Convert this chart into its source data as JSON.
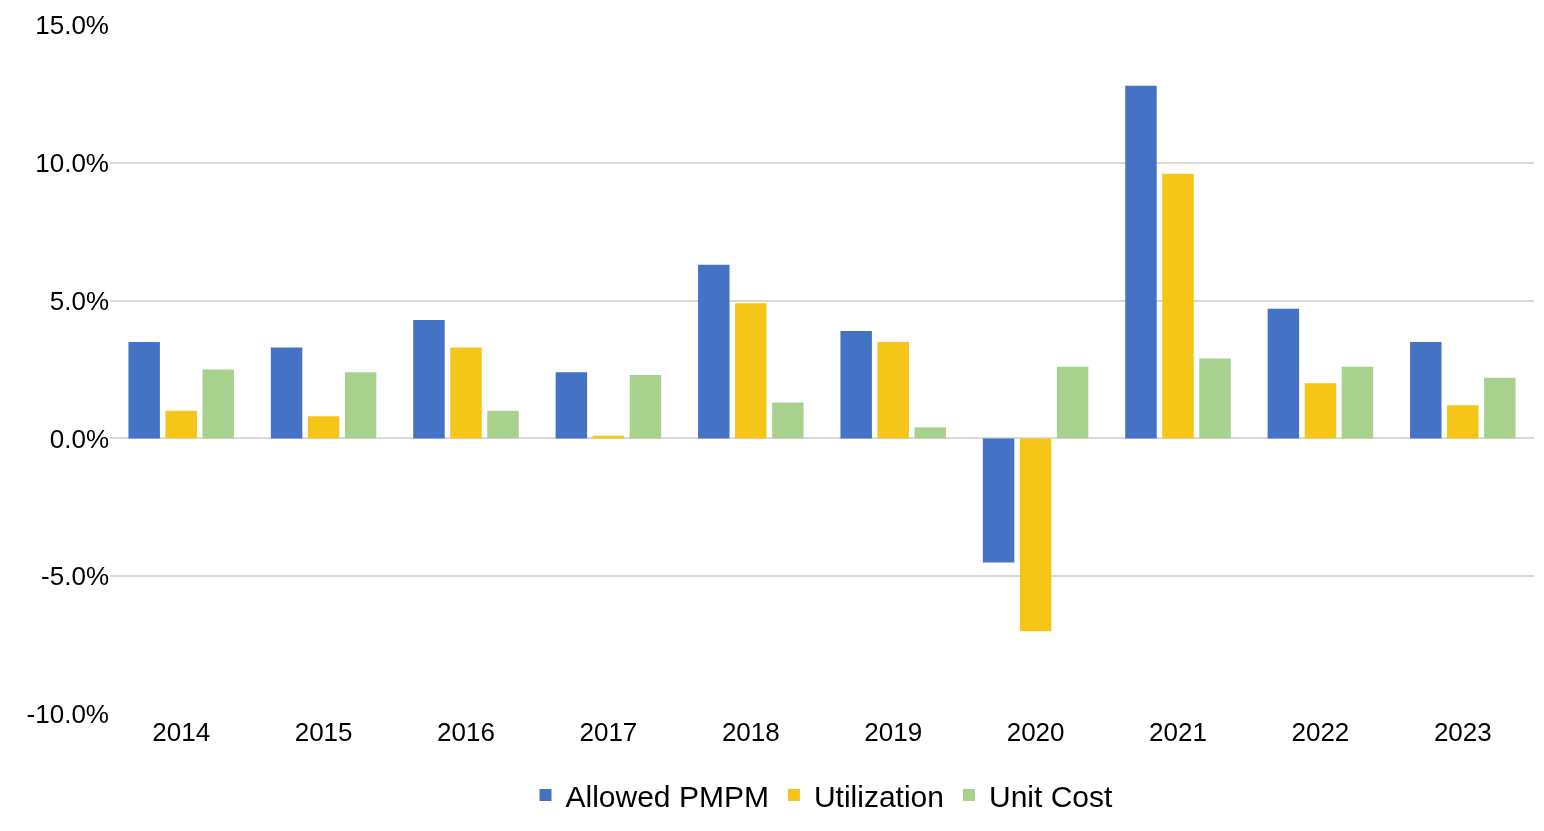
{
  "chart_data": {
    "type": "bar",
    "categories": [
      "2014",
      "2015",
      "2016",
      "2017",
      "2018",
      "2019",
      "2020",
      "2021",
      "2022",
      "2023"
    ],
    "series": [
      {
        "name": "Allowed PMPM",
        "color": "#4472c4",
        "values": [
          3.5,
          3.3,
          4.3,
          2.4,
          6.3,
          3.9,
          -4.5,
          12.8,
          4.7,
          3.5
        ]
      },
      {
        "name": "Utilization",
        "color": "#f5c518",
        "values": [
          1.0,
          0.8,
          3.3,
          0.1,
          4.9,
          3.5,
          -7.0,
          9.6,
          2.0,
          1.2
        ]
      },
      {
        "name": "Unit Cost",
        "color": "#a9d18e",
        "values": [
          2.5,
          2.4,
          1.0,
          2.3,
          1.3,
          0.4,
          2.6,
          2.9,
          2.6,
          2.2
        ]
      }
    ],
    "ylim": [
      -10,
      15
    ],
    "yticks": [
      {
        "value": -10,
        "label": "-10.0%"
      },
      {
        "value": -5,
        "label": "-5.0%"
      },
      {
        "value": 0,
        "label": "0.0%"
      },
      {
        "value": 5,
        "label": "5.0%"
      },
      {
        "value": 10,
        "label": "10.0%"
      },
      {
        "value": 15,
        "label": "15.0%"
      }
    ],
    "grid": "y",
    "legend": "bottom"
  }
}
